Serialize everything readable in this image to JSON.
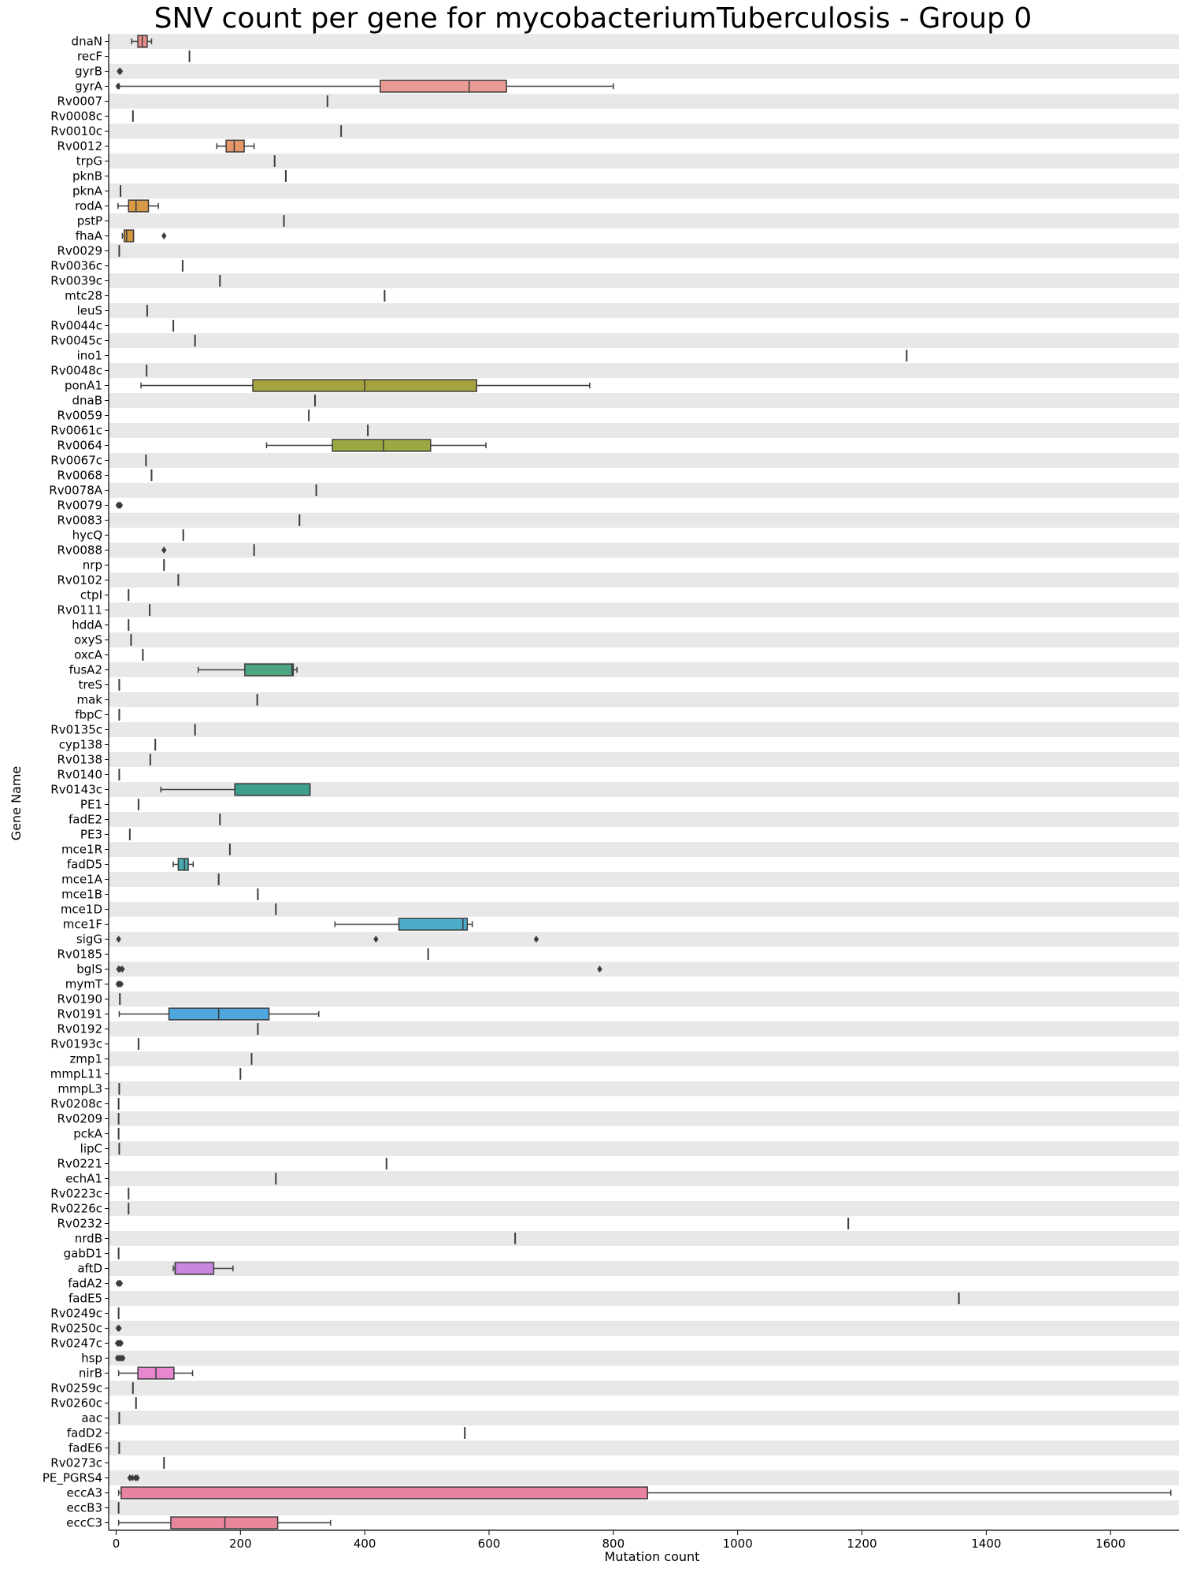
{
  "chart_data": {
    "type": "box",
    "title": "SNV count per gene for mycobacteriumTuberculosis - Group 0",
    "xlabel": "Mutation count",
    "ylabel": "Gene Name",
    "xlim": [
      -12,
      1710
    ],
    "xticks": [
      0,
      200,
      400,
      600,
      800,
      1000,
      1200,
      1400,
      1600
    ],
    "stripe_color": "#e8e8e8",
    "genes": [
      {
        "name": "dnaN",
        "box": [
          25,
          35,
          42,
          50,
          57
        ],
        "color": "#e88c8c"
      },
      {
        "name": "recF",
        "value": 118
      },
      {
        "name": "gyrB",
        "fliers": [
          5,
          7
        ]
      },
      {
        "name": "gyrA",
        "box": [
          5,
          425,
          568,
          628,
          800
        ],
        "fliers": [
          3
        ],
        "color": "#e89a93"
      },
      {
        "name": "Rv0007",
        "value": 340
      },
      {
        "name": "Rv0008c",
        "value": 27
      },
      {
        "name": "Rv0010c",
        "value": 362
      },
      {
        "name": "Rv0012",
        "box": [
          162,
          177,
          190,
          206,
          222
        ],
        "color": "#e59768"
      },
      {
        "name": "trpG",
        "value": 255
      },
      {
        "name": "pknB",
        "value": 273
      },
      {
        "name": "pknA",
        "value": 7
      },
      {
        "name": "rodA",
        "box": [
          3,
          20,
          32,
          52,
          68
        ],
        "color": "#d99a48"
      },
      {
        "name": "pstP",
        "value": 270
      },
      {
        "name": "fhaA",
        "box": [
          10,
          13,
          17,
          28,
          28
        ],
        "fliers": [
          77
        ],
        "color": "#d4973c"
      },
      {
        "name": "Rv0029",
        "value": 5
      },
      {
        "name": "Rv0036c",
        "value": 107
      },
      {
        "name": "Rv0039c",
        "value": 167
      },
      {
        "name": "mtc28",
        "value": 432
      },
      {
        "name": "leuS",
        "value": 50
      },
      {
        "name": "Rv0044c",
        "value": 92
      },
      {
        "name": "Rv0045c",
        "value": 127
      },
      {
        "name": "ino1",
        "value": 1272
      },
      {
        "name": "Rv0048c",
        "value": 49
      },
      {
        "name": "ponA1",
        "box": [
          40,
          220,
          400,
          580,
          762
        ],
        "color": "#a5a33f"
      },
      {
        "name": "dnaB",
        "value": 320
      },
      {
        "name": "Rv0059",
        "value": 310
      },
      {
        "name": "Rv0061c",
        "value": 405
      },
      {
        "name": "Rv0064",
        "box": [
          242,
          348,
          430,
          506,
          595
        ],
        "color": "#9da842"
      },
      {
        "name": "Rv0067c",
        "value": 48
      },
      {
        "name": "Rv0068",
        "value": 57
      },
      {
        "name": "Rv0078A",
        "value": 322
      },
      {
        "name": "Rv0079",
        "fliers": [
          3,
          5,
          7
        ]
      },
      {
        "name": "Rv0083",
        "value": 295
      },
      {
        "name": "hycQ",
        "value": 108
      },
      {
        "name": "Rv0088",
        "value": 222,
        "fliers": [
          77
        ]
      },
      {
        "name": "nrp",
        "value": 77
      },
      {
        "name": "Rv0102",
        "value": 100
      },
      {
        "name": "ctpI",
        "value": 20
      },
      {
        "name": "Rv0111",
        "value": 54
      },
      {
        "name": "hddA",
        "value": 20
      },
      {
        "name": "oxyS",
        "value": 24
      },
      {
        "name": "oxcA",
        "value": 43
      },
      {
        "name": "fusA2",
        "box": [
          132,
          207,
          283,
          285,
          291
        ],
        "color": "#4ea582"
      },
      {
        "name": "treS",
        "value": 5
      },
      {
        "name": "mak",
        "value": 227
      },
      {
        "name": "fbpC",
        "value": 5
      },
      {
        "name": "Rv0135c",
        "value": 127
      },
      {
        "name": "cyp138",
        "value": 63
      },
      {
        "name": "Rv0138",
        "value": 55
      },
      {
        "name": "Rv0140",
        "value": 5
      },
      {
        "name": "Rv0143c",
        "box": [
          72,
          191,
          191,
          312,
          312
        ],
        "color": "#3f9f8e"
      },
      {
        "name": "PE1",
        "value": 36
      },
      {
        "name": "fadE2",
        "value": 167
      },
      {
        "name": "PE3",
        "value": 22
      },
      {
        "name": "mce1R",
        "value": 183
      },
      {
        "name": "fadD5",
        "box": [
          92,
          100,
          110,
          116,
          124
        ],
        "color": "#47a9ad"
      },
      {
        "name": "mce1A",
        "value": 165
      },
      {
        "name": "mce1B",
        "value": 228
      },
      {
        "name": "mce1D",
        "value": 257
      },
      {
        "name": "mce1F",
        "box": [
          352,
          455,
          558,
          565,
          573
        ],
        "color": "#4cabc6"
      },
      {
        "name": "sigG",
        "fliers": [
          4,
          418,
          676
        ]
      },
      {
        "name": "Rv0185",
        "value": 502
      },
      {
        "name": "bglS",
        "fliers": [
          4,
          6,
          10,
          778
        ]
      },
      {
        "name": "mymT",
        "fliers": [
          3,
          5,
          8
        ]
      },
      {
        "name": "Rv0190",
        "value": 6
      },
      {
        "name": "Rv0191",
        "box": [
          5,
          85,
          165,
          246,
          326
        ],
        "color": "#4ea6dd"
      },
      {
        "name": "Rv0192",
        "value": 228
      },
      {
        "name": "Rv0193c",
        "value": 36
      },
      {
        "name": "zmp1",
        "value": 218
      },
      {
        "name": "mmpL11",
        "value": 200
      },
      {
        "name": "mmpL3",
        "value": 5
      },
      {
        "name": "Rv0208c",
        "value": 4
      },
      {
        "name": "Rv0209",
        "value": 4
      },
      {
        "name": "pckA",
        "value": 4
      },
      {
        "name": "lipC",
        "value": 5
      },
      {
        "name": "Rv0221",
        "value": 435
      },
      {
        "name": "echA1",
        "value": 257
      },
      {
        "name": "Rv0223c",
        "value": 20
      },
      {
        "name": "Rv0226c",
        "value": 20
      },
      {
        "name": "Rv0232",
        "value": 1178
      },
      {
        "name": "nrdB",
        "value": 642
      },
      {
        "name": "gabD1",
        "value": 4
      },
      {
        "name": "aftD",
        "box": [
          92,
          95,
          95,
          157,
          188
        ],
        "color": "#c987e0"
      },
      {
        "name": "fadA2",
        "fliers": [
          3,
          5,
          7
        ]
      },
      {
        "name": "fadE5",
        "value": 1356
      },
      {
        "name": "Rv0249c",
        "value": 4
      },
      {
        "name": "Rv0250c",
        "fliers": [
          3,
          5
        ]
      },
      {
        "name": "Rv0247c",
        "fliers": [
          2,
          4,
          6,
          8
        ]
      },
      {
        "name": "hsp",
        "fliers": [
          2,
          5,
          8,
          11
        ]
      },
      {
        "name": "nirB",
        "box": [
          4,
          35,
          64,
          93,
          123
        ],
        "color": "#e687d0"
      },
      {
        "name": "Rv0259c",
        "value": 27
      },
      {
        "name": "Rv0260c",
        "value": 32
      },
      {
        "name": "aac",
        "value": 5
      },
      {
        "name": "fadD2",
        "value": 561
      },
      {
        "name": "fadE6",
        "value": 5
      },
      {
        "name": "Rv0273c",
        "value": 77
      },
      {
        "name": "PE_PGRS4",
        "fliers": [
          22,
          26,
          31,
          34
        ]
      },
      {
        "name": "eccA3",
        "box": [
          4,
          8,
          8,
          855,
          1697
        ],
        "color": "#e8849f"
      },
      {
        "name": "eccB3",
        "value": 4
      },
      {
        "name": "eccC3",
        "box": [
          4,
          88,
          175,
          260,
          345
        ],
        "color": "#e8869c"
      }
    ]
  }
}
